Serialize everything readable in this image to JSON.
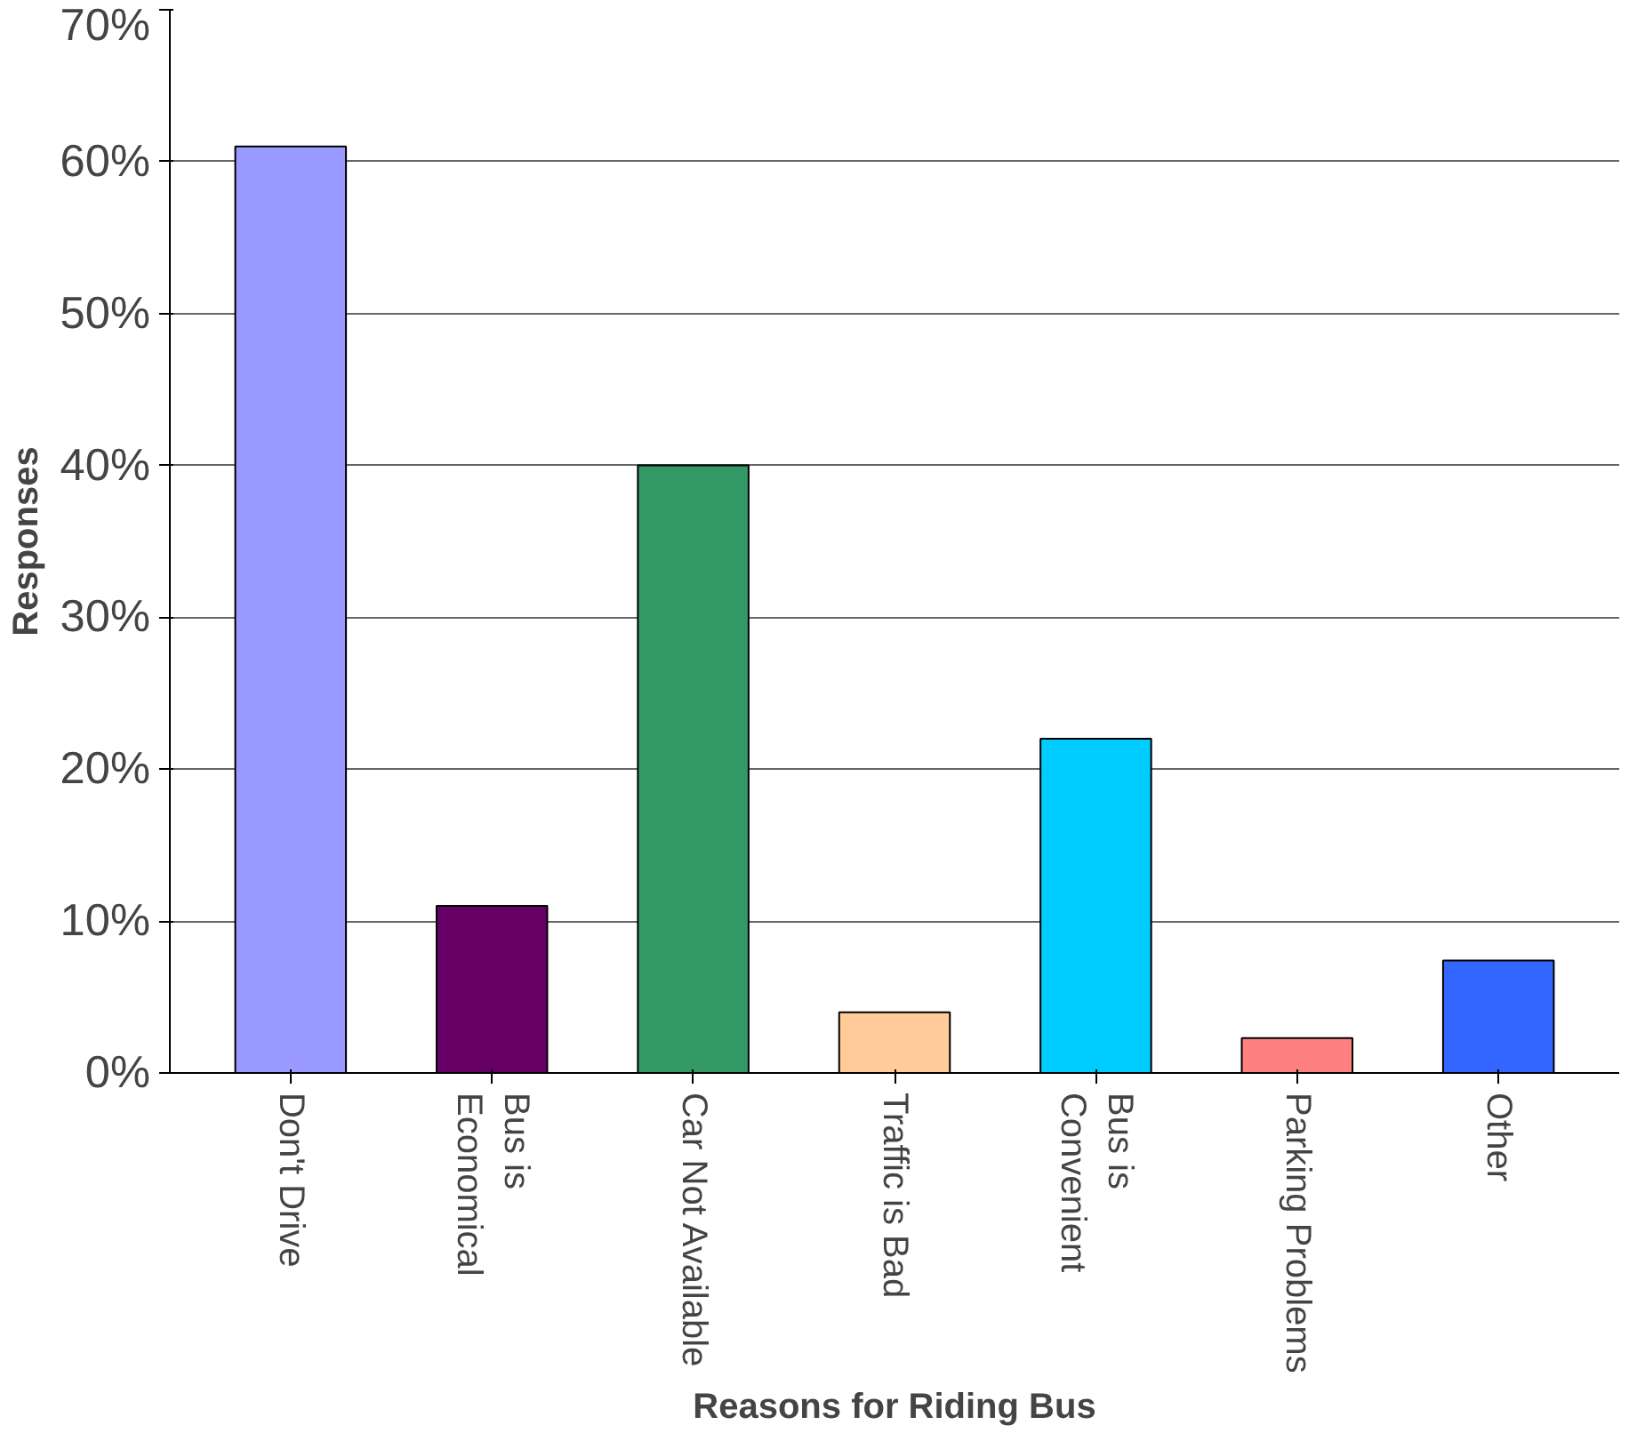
{
  "chart_data": {
    "type": "bar",
    "xlabel": "Reasons for Riding Bus",
    "ylabel": "Responses",
    "categories": [
      "Don't Drive",
      "Bus is\nEconomical",
      "Car Not Available",
      "Traffic is Bad",
      "Bus is\nConvenient",
      "Parking Problems",
      "Other"
    ],
    "values": [
      61,
      11,
      40,
      4,
      22,
      2.3,
      7.4
    ],
    "colors": [
      "#9999ff",
      "#660066",
      "#339966",
      "#ffcc99",
      "#00ccff",
      "#ff8080",
      "#3366ff"
    ],
    "ylim": [
      0,
      70
    ],
    "yticks": [
      {
        "value": 0,
        "label": "0%"
      },
      {
        "value": 10,
        "label": "10%"
      },
      {
        "value": 20,
        "label": "20%"
      },
      {
        "value": 30,
        "label": "30%"
      },
      {
        "value": 40,
        "label": "40%"
      },
      {
        "value": 50,
        "label": "50%"
      },
      {
        "value": 60,
        "label": "60%"
      },
      {
        "value": 70,
        "label": "70%"
      }
    ],
    "grid": "y"
  }
}
